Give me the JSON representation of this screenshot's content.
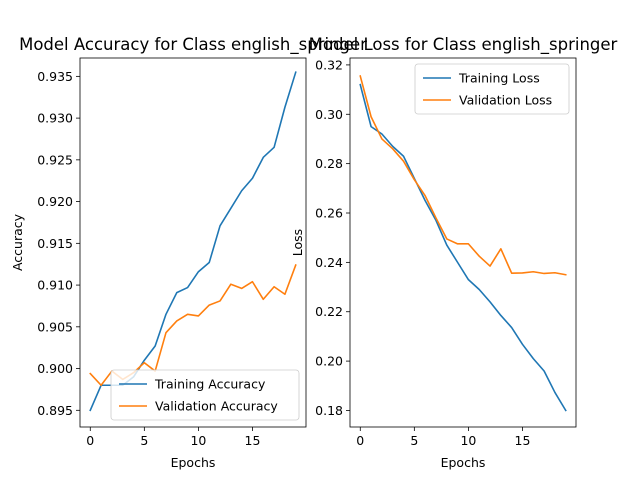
{
  "chart_data": [
    {
      "type": "line",
      "title": "Model Accuracy for Class english_springer",
      "xlabel": "Epochs",
      "ylabel": "Accuracy",
      "xlim": [
        -0.95,
        19.95
      ],
      "ylim": [
        0.893,
        0.9372
      ],
      "xticks": [
        0,
        5,
        10,
        15
      ],
      "yticks": [
        0.895,
        0.9,
        0.905,
        0.91,
        0.915,
        0.92,
        0.925,
        0.93,
        0.935
      ],
      "ytick_labels": [
        "0.895",
        "0.900",
        "0.905",
        "0.910",
        "0.915",
        "0.920",
        "0.925",
        "0.930",
        "0.935"
      ],
      "legend_loc": "lower-right",
      "grid": false,
      "x": [
        0,
        1,
        2,
        3,
        4,
        5,
        6,
        7,
        8,
        9,
        10,
        11,
        12,
        13,
        14,
        15,
        16,
        17,
        18,
        19
      ],
      "series": [
        {
          "name": "Training Accuracy",
          "color": "#1f77b4",
          "values": [
            0.895,
            0.898,
            0.898,
            0.898,
            0.899,
            0.901,
            0.9027,
            0.9065,
            0.9091,
            0.9097,
            0.9116,
            0.9127,
            0.9171,
            0.9192,
            0.9213,
            0.9228,
            0.9253,
            0.9265,
            0.9313,
            0.9355
          ]
        },
        {
          "name": "Validation Accuracy",
          "color": "#ff7f0e",
          "values": [
            0.8994,
            0.898,
            0.8997,
            0.8987,
            0.8995,
            0.9007,
            0.8997,
            0.9043,
            0.9057,
            0.9065,
            0.9063,
            0.9076,
            0.9081,
            0.9101,
            0.9096,
            0.9104,
            0.9083,
            0.9098,
            0.9089,
            0.9124
          ]
        }
      ]
    },
    {
      "type": "line",
      "title": "Model Loss for Class english_springer",
      "xlabel": "Epochs",
      "ylabel": "Loss",
      "xlim": [
        -0.95,
        19.95
      ],
      "ylim": [
        0.1733,
        0.3228
      ],
      "xticks": [
        0,
        5,
        10,
        15
      ],
      "yticks": [
        0.18,
        0.2,
        0.22,
        0.24,
        0.26,
        0.28,
        0.3,
        0.32
      ],
      "ytick_labels": [
        "0.18",
        "0.20",
        "0.22",
        "0.24",
        "0.26",
        "0.28",
        "0.30",
        "0.32"
      ],
      "legend_loc": "upper-right",
      "grid": false,
      "x": [
        0,
        1,
        2,
        3,
        4,
        5,
        6,
        7,
        8,
        9,
        10,
        11,
        12,
        13,
        14,
        15,
        16,
        17,
        18,
        19
      ],
      "series": [
        {
          "name": "Training Loss",
          "color": "#1f77b4",
          "values": [
            0.312,
            0.295,
            0.292,
            0.287,
            0.283,
            0.274,
            0.265,
            0.257,
            0.247,
            0.24,
            0.233,
            0.229,
            0.224,
            0.2185,
            0.2136,
            0.2068,
            0.201,
            0.196,
            0.1873,
            0.18
          ]
        },
        {
          "name": "Validation Loss",
          "color": "#ff7f0e",
          "values": [
            0.3155,
            0.299,
            0.29,
            0.286,
            0.281,
            0.2735,
            0.267,
            0.258,
            0.2495,
            0.2475,
            0.2475,
            0.2425,
            0.2385,
            0.2455,
            0.2356,
            0.2357,
            0.2362,
            0.2355,
            0.2358,
            0.235
          ]
        }
      ]
    }
  ]
}
